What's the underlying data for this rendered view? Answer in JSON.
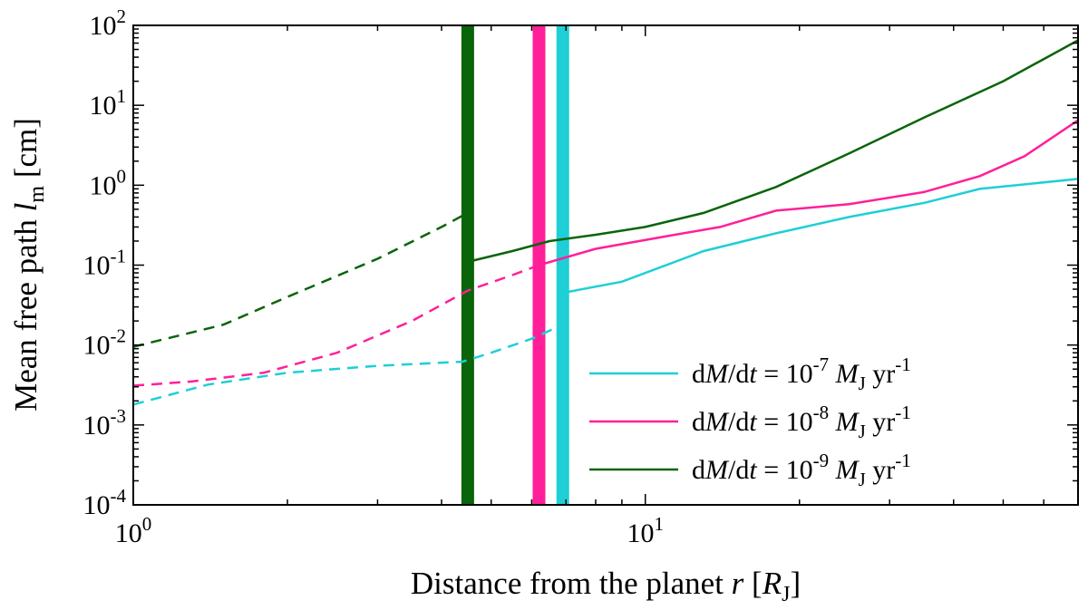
{
  "chart_data": {
    "type": "line",
    "xscale": "log",
    "yscale": "log",
    "xlim": [
      1,
      70
    ],
    "ylim": [
      0.0001,
      100
    ],
    "xlabel": {
      "text": "Distance from the planet ",
      "var": "r",
      "open": " [",
      "unit": "R",
      "sub": "J",
      "close": "]"
    },
    "ylabel": {
      "text": "Mean free path ",
      "var": "l",
      "sub": "m",
      "unit": " [cm]"
    },
    "x_ticks": [
      {
        "base": "10",
        "exp": "0"
      },
      {
        "base": "10",
        "exp": "1"
      }
    ],
    "y_ticks": [
      {
        "base": "10",
        "exp": "-4"
      },
      {
        "base": "10",
        "exp": "-3"
      },
      {
        "base": "10",
        "exp": "-2"
      },
      {
        "base": "10",
        "exp": "-1"
      },
      {
        "base": "10",
        "exp": "0"
      },
      {
        "base": "10",
        "exp": "1"
      },
      {
        "base": "10",
        "exp": "2"
      }
    ],
    "legend_position": "lower-right",
    "series": [
      {
        "id": "rate-1e-7",
        "color": "#1ecfd6",
        "exponent": "-7",
        "boundary_r": 6.9,
        "dashed": {
          "x": [
            1.0,
            1.4,
            2.0,
            3.0,
            4.4,
            5.0,
            6.0,
            6.9
          ],
          "y": [
            0.0018,
            0.0032,
            0.0045,
            0.0055,
            0.0062,
            0.008,
            0.012,
            0.018
          ]
        },
        "solid": {
          "x": [
            6.9,
            9.0,
            13.0,
            18.0,
            25.0,
            35.0,
            45.0,
            70.0
          ],
          "y": [
            0.045,
            0.062,
            0.15,
            0.25,
            0.4,
            0.6,
            0.9,
            1.2
          ]
        }
      },
      {
        "id": "rate-1e-8",
        "color": "#ff1f99",
        "exponent": "-8",
        "boundary_r": 6.2,
        "dashed": {
          "x": [
            1.0,
            1.3,
            1.8,
            2.5,
            3.5,
            4.5,
            5.5,
            6.2
          ],
          "y": [
            0.0031,
            0.0035,
            0.0045,
            0.008,
            0.02,
            0.048,
            0.075,
            0.1
          ]
        },
        "solid": {
          "x": [
            6.2,
            8.0,
            11.0,
            14.0,
            18.0,
            25.0,
            35.0,
            45.0,
            55.0,
            70.0
          ],
          "y": [
            0.1,
            0.16,
            0.23,
            0.3,
            0.48,
            0.58,
            0.82,
            1.3,
            2.3,
            6.5
          ]
        }
      },
      {
        "id": "rate-1e-9",
        "color": "#0a640a",
        "exponent": "-9",
        "boundary_r": 4.5,
        "dashed": {
          "x": [
            1.0,
            1.5,
            2.0,
            3.0,
            4.0,
            4.5
          ],
          "y": [
            0.0095,
            0.018,
            0.04,
            0.12,
            0.3,
            0.45
          ]
        },
        "solid": {
          "x": [
            4.5,
            5.5,
            6.5,
            8.0,
            10.0,
            13.0,
            18.0,
            25.0,
            35.0,
            50.0,
            70.0
          ],
          "y": [
            0.11,
            0.15,
            0.2,
            0.24,
            0.3,
            0.45,
            0.95,
            2.5,
            7.0,
            20.0,
            65.0
          ]
        }
      }
    ],
    "legend": {
      "prefix_d": "d",
      "prefix_M": "M",
      "slash": "/d",
      "t": "t",
      "equals": " = 10",
      "unit_M": "M",
      "unit_sub": "J",
      "unit_yr": " yr",
      "unit_exp": "-1"
    }
  }
}
